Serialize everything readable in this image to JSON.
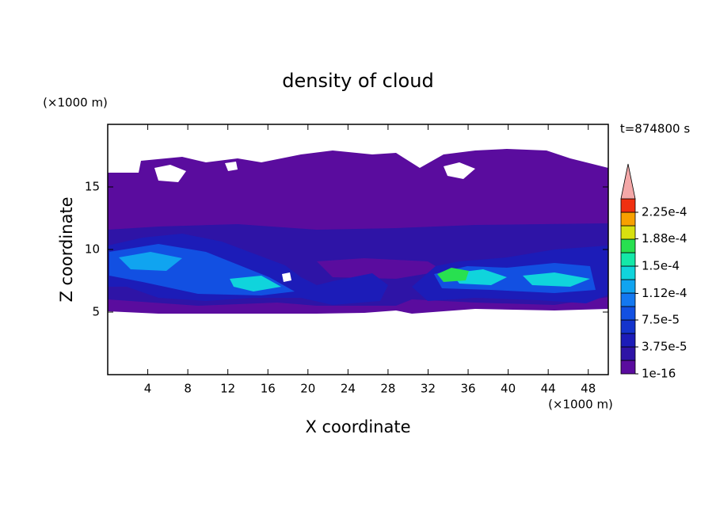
{
  "chart_data": {
    "type": "contour",
    "title": "density of cloud",
    "x_label": "X coordinate",
    "y_label": "Z coordinate",
    "x_unit": "(×1000 m)",
    "y_unit": "(×1000 m)",
    "annotation": "t=874800 s",
    "xlim": [
      0,
      50
    ],
    "ylim": [
      0,
      20
    ],
    "xticks": [
      4,
      8,
      12,
      16,
      20,
      24,
      28,
      32,
      36,
      40,
      44,
      48
    ],
    "yticks": [
      5,
      10,
      15
    ],
    "colorbar": {
      "colors": [
        "#5a0c9e",
        "#2e14a6",
        "#1c1cb8",
        "#1434cc",
        "#1250e2",
        "#1478f0",
        "#10a4f0",
        "#10d4dc",
        "#14e8a8",
        "#28e050",
        "#d8e010",
        "#f8a000",
        "#f03010"
      ],
      "extend_color": "#f4a8a8",
      "lim": [
        1e-16,
        0.00024375
      ],
      "ticks": [
        1e-16,
        {
          "value": 3.75e-05,
          "label": "3.75e-5"
        },
        {
          "value": 7.5e-05,
          "label": "7.5e-5"
        },
        {
          "value": 0.000112,
          "label": "1.12e-4"
        },
        {
          "value": 0.00015,
          "label": "1.5e-4"
        },
        {
          "value": 0.000188,
          "label": "1.88e-4"
        },
        {
          "value": 0.000225,
          "label": "2.25e-4"
        }
      ]
    }
  }
}
